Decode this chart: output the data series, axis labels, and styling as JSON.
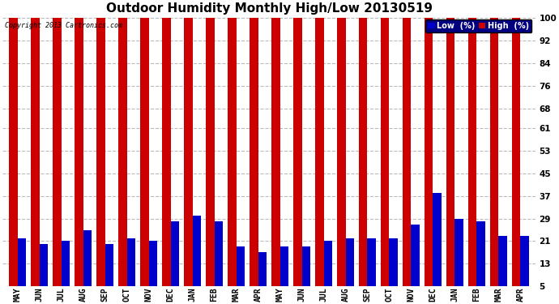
{
  "title": "Outdoor Humidity Monthly High/Low 20130519",
  "copyright": "Copyright 2013 Cartronics.com",
  "months": [
    "MAY",
    "JUN",
    "JUL",
    "AUG",
    "SEP",
    "OCT",
    "NOV",
    "DEC",
    "JAN",
    "FEB",
    "MAR",
    "APR",
    "MAY",
    "JUN",
    "JUL",
    "AUG",
    "SEP",
    "OCT",
    "NOV",
    "DEC",
    "JAN",
    "FEB",
    "MAR",
    "APR"
  ],
  "high_values": [
    100,
    100,
    100,
    100,
    100,
    100,
    100,
    100,
    100,
    100,
    100,
    100,
    100,
    100,
    100,
    100,
    100,
    100,
    100,
    100,
    100,
    100,
    100,
    100
  ],
  "low_values": [
    22,
    20,
    21,
    25,
    20,
    22,
    21,
    28,
    30,
    28,
    19,
    17,
    19,
    19,
    21,
    22,
    22,
    22,
    27,
    38,
    29,
    28,
    23,
    23
  ],
  "high_color": "#cc0000",
  "low_color": "#0000cc",
  "bg_color": "#ffffff",
  "grid_color": "#bbbbbb",
  "yticks": [
    5,
    13,
    21,
    29,
    37,
    45,
    53,
    61,
    68,
    76,
    84,
    92,
    100
  ],
  "ylim": [
    5,
    101
  ],
  "title_fontsize": 11,
  "legend_low_label": "Low  (%)",
  "legend_high_label": "High  (%)"
}
